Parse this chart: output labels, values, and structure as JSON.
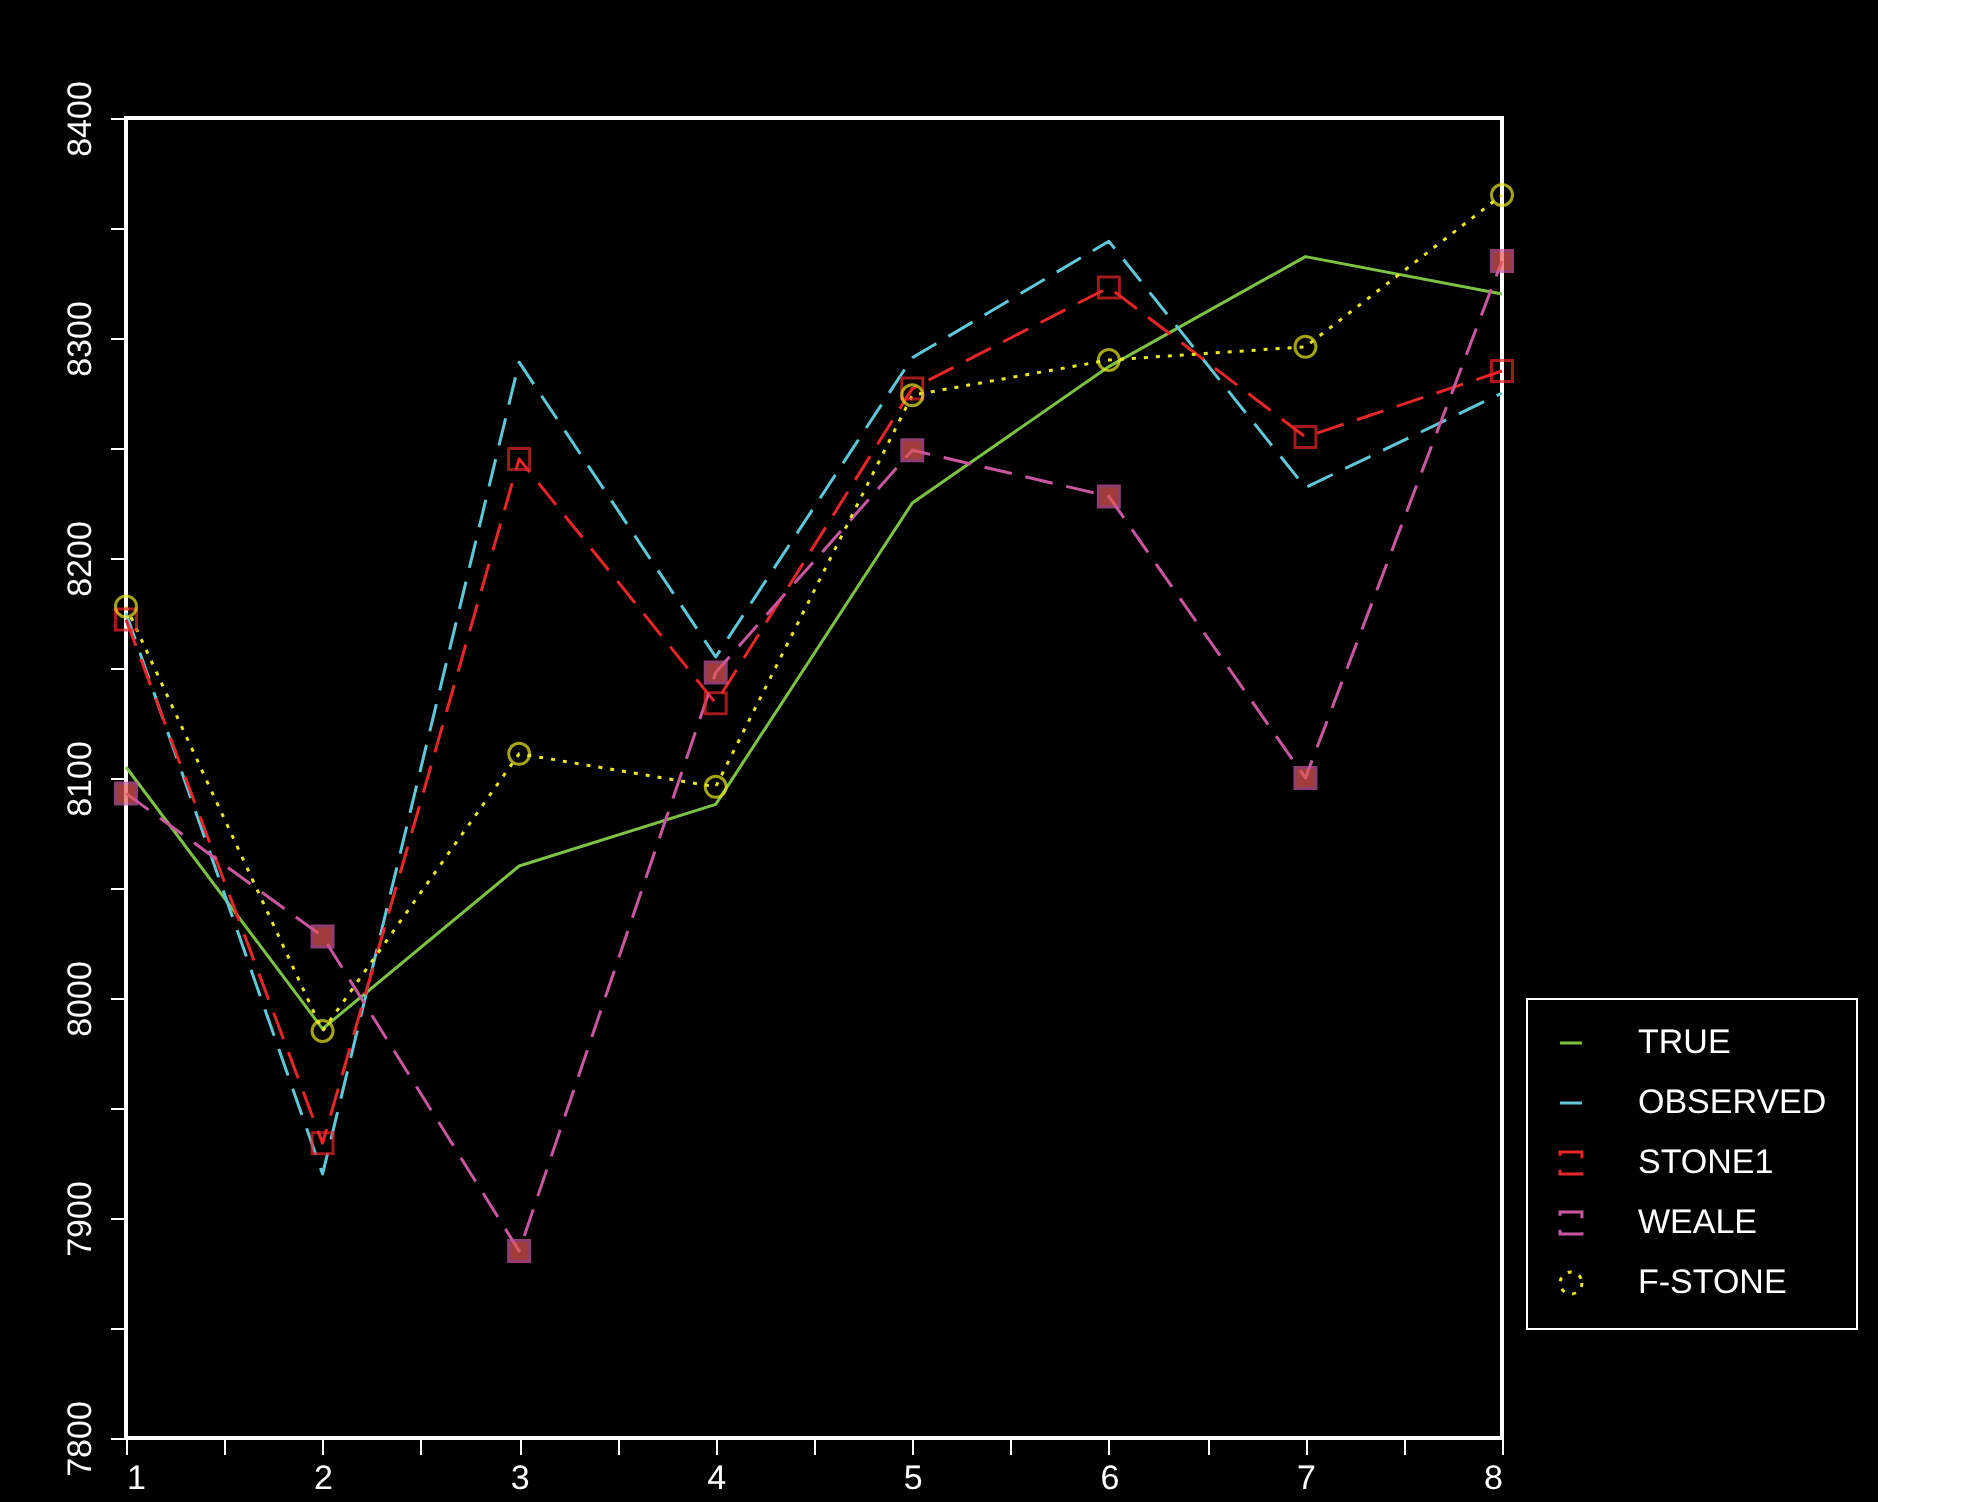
{
  "chart_data": {
    "type": "line",
    "x": [
      1,
      2,
      3,
      4,
      5,
      6,
      7,
      8
    ],
    "series": [
      {
        "name": "TRUE",
        "color": "#7dc242",
        "line_style": "solid",
        "marker": "none",
        "values": [
          8105,
          7986,
          8060,
          8088,
          8225,
          8287,
          8337,
          8320
        ]
      },
      {
        "name": "OBSERVED",
        "color": "#5fc8d8",
        "line_style": "dashed",
        "marker": "none",
        "values": [
          8175,
          7920,
          8289,
          8155,
          8291,
          8344,
          8232,
          8275
        ]
      },
      {
        "name": "STONE1",
        "color": "#e8262a",
        "line_style": "dashed",
        "marker": "square",
        "values": [
          8172,
          7934,
          8245,
          8134,
          8277,
          8323,
          8255,
          8285
        ]
      },
      {
        "name": "WEALE",
        "color": "#c9579f",
        "line_style": "dashed",
        "marker": "square_filled",
        "values": [
          8093,
          8028,
          7885,
          8148,
          8249,
          8228,
          8100,
          8335
        ]
      },
      {
        "name": "F-STONE",
        "color": "#e8e81e",
        "line_style": "dotted",
        "marker": "circle",
        "values": [
          8178,
          7985,
          8111,
          8096,
          8274,
          8290,
          8296,
          8365
        ]
      }
    ],
    "xlim": [
      1,
      8
    ],
    "xticks": [
      1,
      {
        "value": 1.5,
        "label": null
      },
      2,
      {
        "value": 2.5,
        "label": null
      },
      3,
      {
        "value": 3.5,
        "label": null
      },
      4,
      {
        "value": 4.5,
        "label": null
      },
      5,
      {
        "value": 5.5,
        "label": null
      },
      6,
      {
        "value": 6.5,
        "label": null
      },
      7,
      {
        "value": 7.5,
        "label": null
      },
      8
    ],
    "ylim": [
      7800,
      8400
    ],
    "yticks": [
      7800,
      {
        "value": 7850,
        "label": null
      },
      7900,
      {
        "value": 7950,
        "label": null
      },
      8000,
      {
        "value": 8050,
        "label": null
      },
      8100,
      {
        "value": 8150,
        "label": null
      },
      8200,
      {
        "value": 8250,
        "label": null
      },
      8300,
      {
        "value": 8350,
        "label": null
      },
      8400
    ],
    "grid": false,
    "legend": "bottom right"
  }
}
